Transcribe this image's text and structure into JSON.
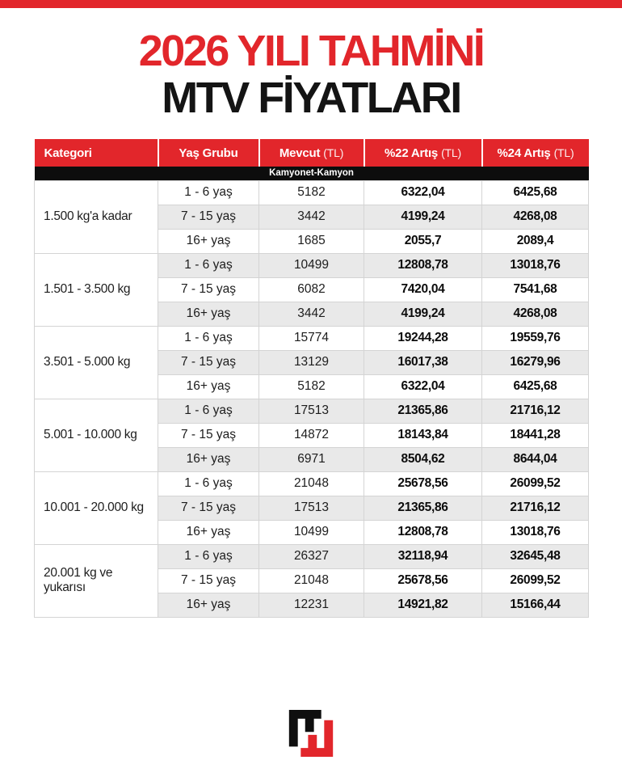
{
  "colors": {
    "brand_red": "#e2262b",
    "banner_black": "#0d0d0d",
    "row_alt": "#e9e9e9",
    "cell_border": "#d4d4d4"
  },
  "header": {
    "title_line1": "2026 YILI TAHMİNİ",
    "title_line2": "MTV FİYATLARI"
  },
  "footer": {
    "logo": "hurriyet-logo"
  },
  "chart_data": {
    "type": "table",
    "title": "2026 YILI TAHMİNİ MTV FİYATLARI",
    "section_label": "Kamyonet-Kamyon",
    "columns": [
      {
        "label": "Kategori",
        "suffix": ""
      },
      {
        "label": "Yaş Grubu",
        "suffix": ""
      },
      {
        "label": "Mevcut",
        "suffix": "(TL)"
      },
      {
        "label": "%22 Artış",
        "suffix": "(TL)"
      },
      {
        "label": "%24 Artış",
        "suffix": "(TL)"
      }
    ],
    "groups": [
      {
        "category": "1.500 kg'a kadar",
        "rows": [
          [
            "1 - 6 yaş",
            "5182",
            "6322,04",
            "6425,68"
          ],
          [
            "7 - 15 yaş",
            "3442",
            "4199,24",
            "4268,08"
          ],
          [
            "16+ yaş",
            "1685",
            "2055,7",
            "2089,4"
          ]
        ]
      },
      {
        "category": "1.501 - 3.500 kg",
        "rows": [
          [
            "1 - 6 yaş",
            "10499",
            "12808,78",
            "13018,76"
          ],
          [
            "7 - 15 yaş",
            "6082",
            "7420,04",
            "7541,68"
          ],
          [
            "16+ yaş",
            "3442",
            "4199,24",
            "4268,08"
          ]
        ]
      },
      {
        "category": "3.501 - 5.000 kg",
        "rows": [
          [
            "1 - 6 yaş",
            "15774",
            "19244,28",
            "19559,76"
          ],
          [
            "7 - 15 yaş",
            "13129",
            "16017,38",
            "16279,96"
          ],
          [
            "16+ yaş",
            "5182",
            "6322,04",
            "6425,68"
          ]
        ]
      },
      {
        "category": "5.001 - 10.000 kg",
        "rows": [
          [
            "1 - 6 yaş",
            "17513",
            "21365,86",
            "21716,12"
          ],
          [
            "7 - 15 yaş",
            "14872",
            "18143,84",
            "18441,28"
          ],
          [
            "16+ yaş",
            "6971",
            "8504,62",
            "8644,04"
          ]
        ]
      },
      {
        "category": "10.001 - 20.000 kg",
        "rows": [
          [
            "1 - 6 yaş",
            "21048",
            "25678,56",
            "26099,52"
          ],
          [
            "7 - 15 yaş",
            "17513",
            "21365,86",
            "21716,12"
          ],
          [
            "16+ yaş",
            "10499",
            "12808,78",
            "13018,76"
          ]
        ]
      },
      {
        "category": "20.001 kg ve yukarısı",
        "rows": [
          [
            "1 - 6 yaş",
            "26327",
            "32118,94",
            "32645,48"
          ],
          [
            "7 - 15 yaş",
            "21048",
            "25678,56",
            "26099,52"
          ],
          [
            "16+ yaş",
            "12231",
            "14921,82",
            "15166,44"
          ]
        ]
      }
    ]
  }
}
